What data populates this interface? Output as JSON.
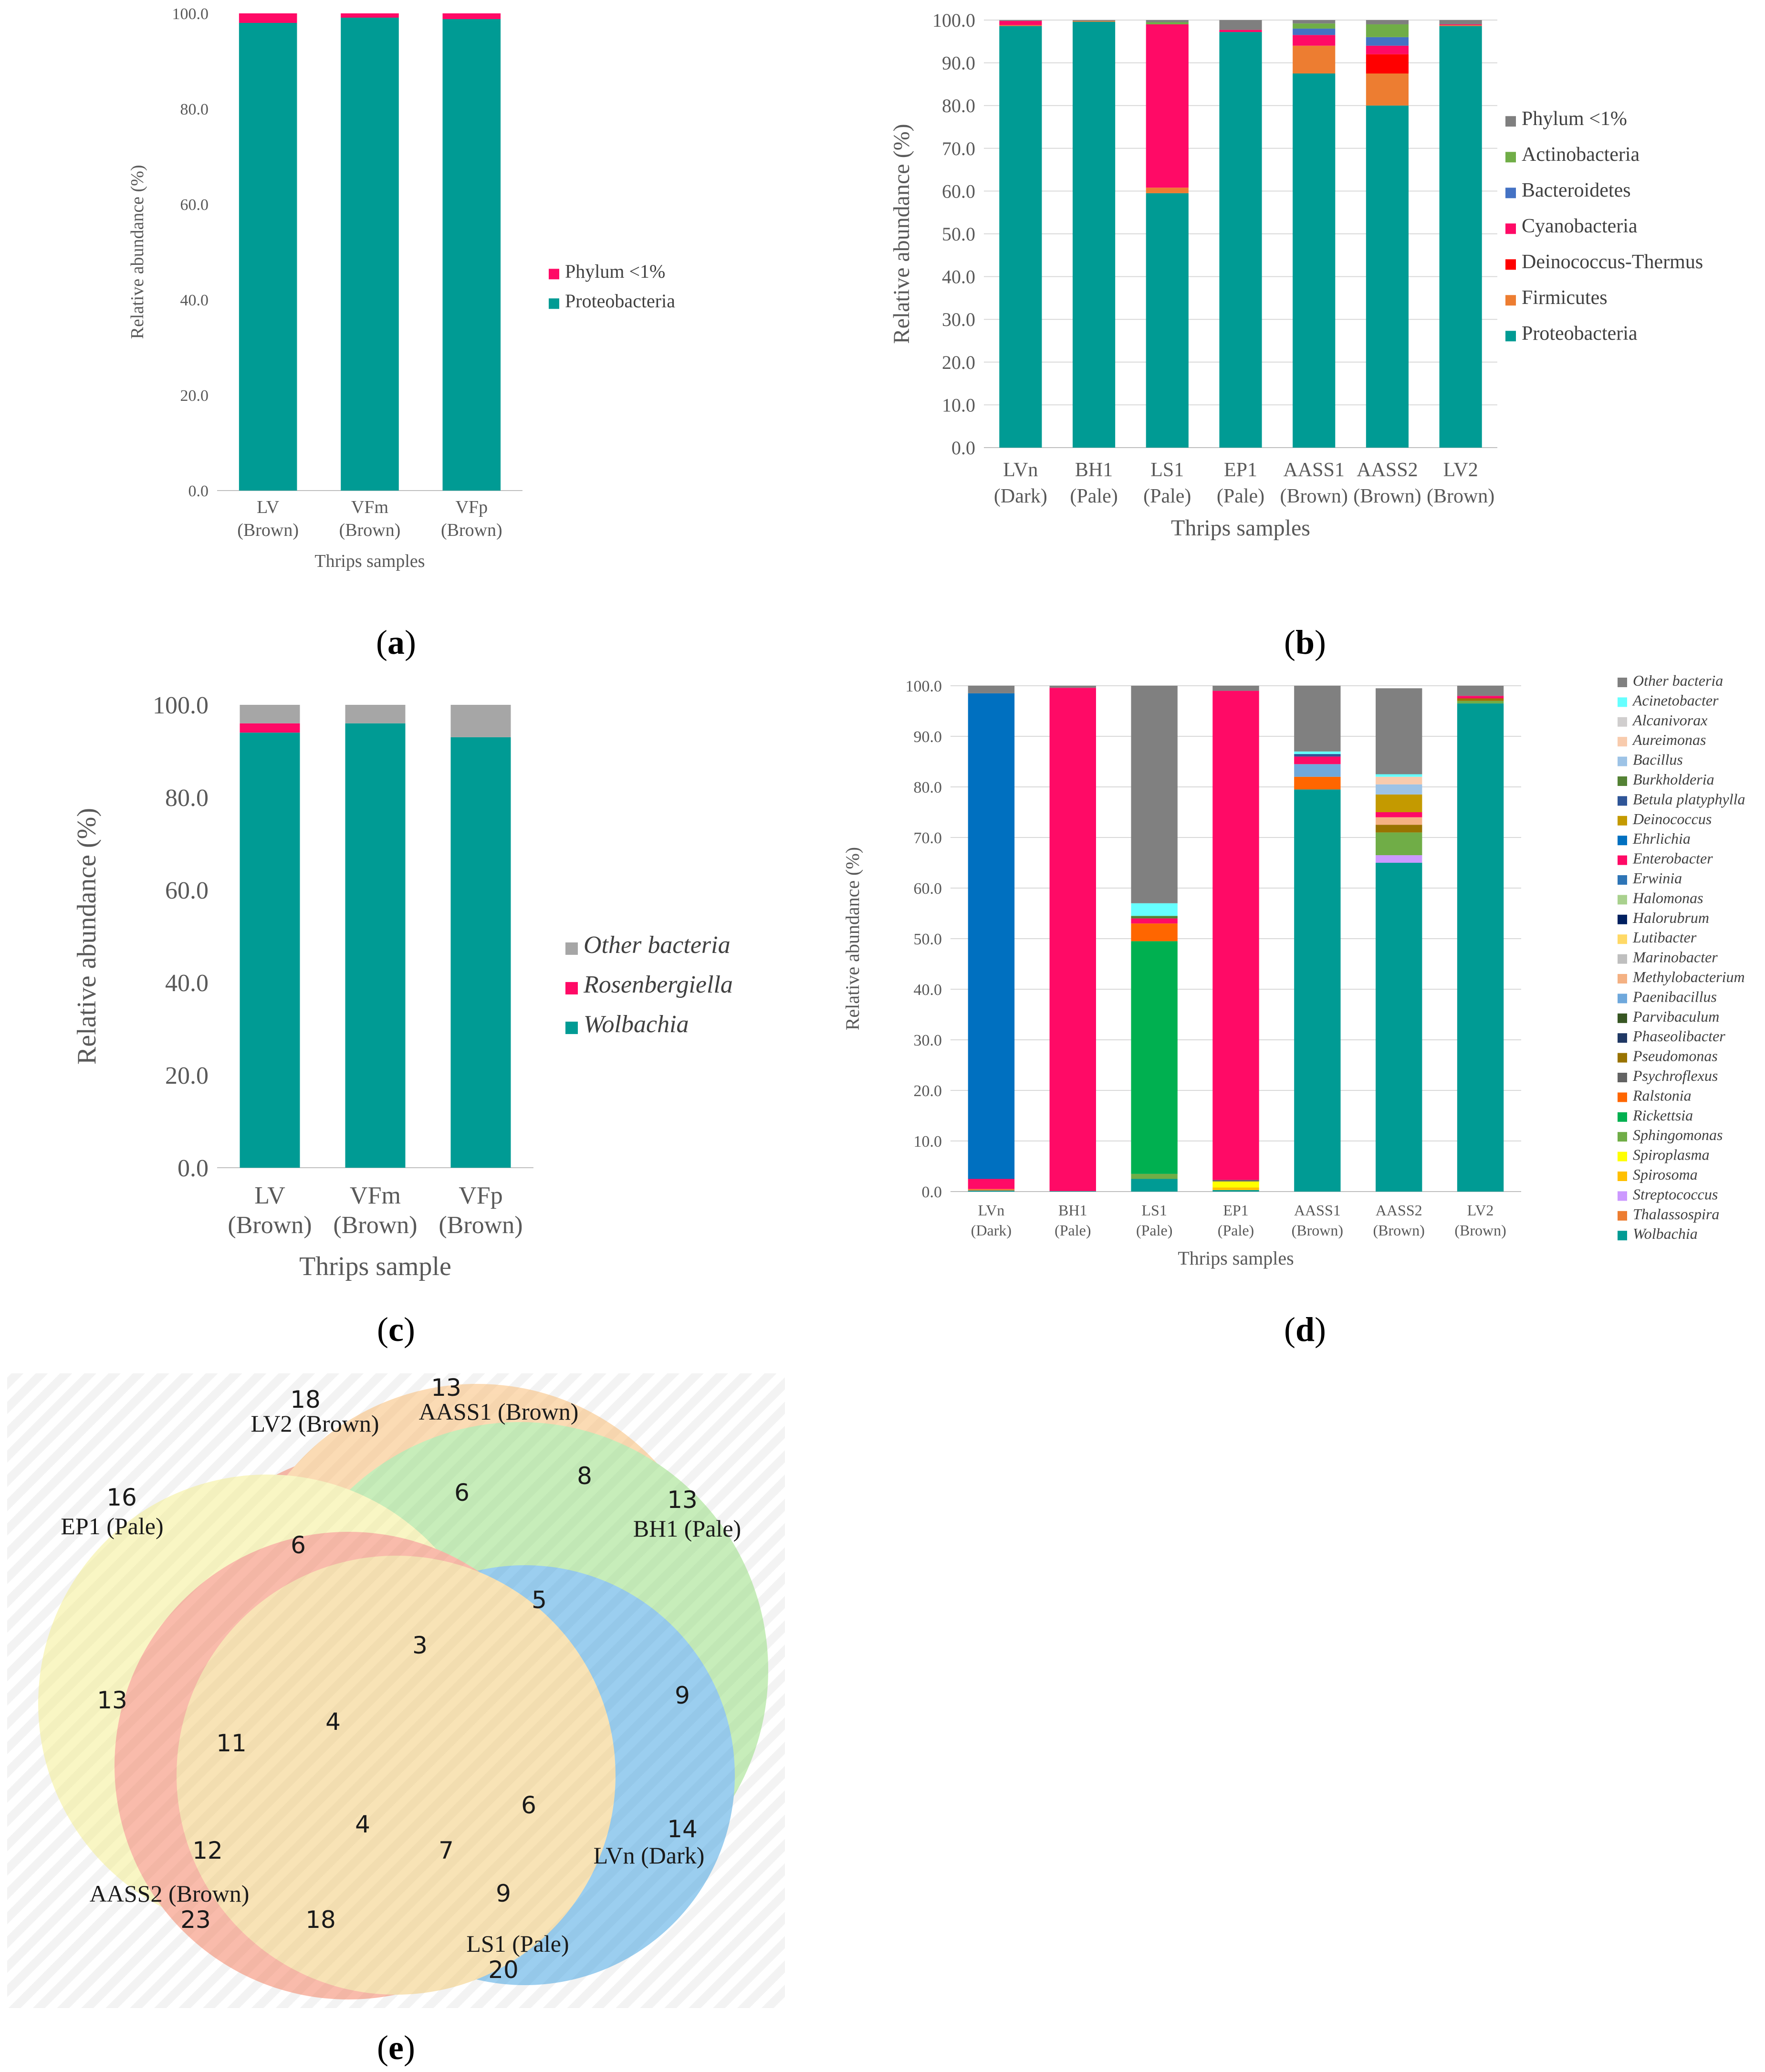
{
  "panels": {
    "a": {
      "label": "(a)",
      "letter": "a",
      "chart_data": {
        "type": "bar",
        "stacked": true,
        "title": "",
        "xlabel": "Thrips samples",
        "ylabel": "Relative abundance (%)",
        "ylim": [
          0,
          100
        ],
        "yticks": [
          "0.0",
          "20.0",
          "40.0",
          "60.0",
          "80.0",
          "100.0"
        ],
        "categories": [
          [
            "LV",
            "(Brown)"
          ],
          [
            "VFm",
            "(Brown)"
          ],
          [
            "VFp",
            "(Brown)"
          ]
        ],
        "legend_position": "right",
        "series": [
          {
            "name": "Proteobacteria",
            "color": "#009b94",
            "italic": false,
            "values": [
              98.0,
              99.1,
              98.8
            ]
          },
          {
            "name": "Phylum <1%",
            "color": "#ff0a66",
            "italic": false,
            "values": [
              2.0,
              0.9,
              1.2
            ]
          }
        ]
      }
    },
    "b": {
      "label": "(b)",
      "letter": "b",
      "chart_data": {
        "type": "bar",
        "stacked": true,
        "title": "",
        "xlabel": "Thrips samples",
        "ylabel": "Relative abundance (%)",
        "ylim": [
          0,
          100
        ],
        "yticks": [
          "0.0",
          "10.0",
          "20.0",
          "30.0",
          "40.0",
          "50.0",
          "60.0",
          "70.0",
          "80.0",
          "90.0",
          "100.0"
        ],
        "categories": [
          [
            "LVn",
            "(Dark)"
          ],
          [
            "BH1",
            "(Pale)"
          ],
          [
            "LS1",
            "(Pale)"
          ],
          [
            "EP1",
            "(Pale)"
          ],
          [
            "AASS1",
            "(Brown)"
          ],
          [
            "AASS2",
            "(Brown)"
          ],
          [
            "LV2",
            "(Brown)"
          ]
        ],
        "legend_position": "right",
        "series": [
          {
            "name": "Proteobacteria",
            "color": "#009b94",
            "italic": false,
            "values": [
              98.6,
              99.6,
              59.5,
              97.2,
              87.5,
              80.0,
              98.6
            ]
          },
          {
            "name": "Firmicutes",
            "color": "#ed7d31",
            "italic": false,
            "values": [
              0.2,
              0.2,
              1.3,
              0.0,
              6.5,
              7.5,
              0.2
            ]
          },
          {
            "name": "Deinococcus-Thermus",
            "color": "#ff0000",
            "italic": false,
            "values": [
              0.0,
              0.0,
              0.0,
              0.0,
              0.0,
              4.5,
              0.0
            ]
          },
          {
            "name": "Cyanobacteria",
            "color": "#ff0a66",
            "italic": false,
            "values": [
              1.0,
              0.0,
              38.2,
              0.5,
              2.5,
              2.0,
              0.2
            ]
          },
          {
            "name": "Bacteroidetes",
            "color": "#4472c4",
            "italic": false,
            "values": [
              0.0,
              0.0,
              0.0,
              0.0,
              1.5,
              2.0,
              0.0
            ]
          },
          {
            "name": "Actinobacteria",
            "color": "#70ad47",
            "italic": false,
            "values": [
              0.0,
              0.0,
              0.5,
              0.0,
              1.2,
              3.0,
              0.0
            ]
          },
          {
            "name": "Phylum <1%",
            "color": "#7f7f7f",
            "italic": false,
            "values": [
              0.2,
              0.2,
              0.5,
              2.3,
              0.8,
              1.0,
              1.0
            ]
          }
        ]
      }
    },
    "c": {
      "label": "(c)",
      "letter": "c",
      "chart_data": {
        "type": "bar",
        "stacked": true,
        "title": "",
        "xlabel": "Thrips sample",
        "ylabel": "Relative abundance (%)",
        "ylim": [
          0,
          100
        ],
        "yticks": [
          "0.0",
          "20.0",
          "40.0",
          "60.0",
          "80.0",
          "100.0"
        ],
        "categories": [
          [
            "LV",
            "(Brown)"
          ],
          [
            "VFm",
            "(Brown)"
          ],
          [
            "VFp",
            "(Brown)"
          ]
        ],
        "legend_position": "right",
        "series": [
          {
            "name": "Wolbachia",
            "color": "#009b94",
            "italic": true,
            "values": [
              94.0,
              96.0,
              93.0
            ]
          },
          {
            "name": "Rosenbergiella",
            "color": "#ff0a66",
            "italic": true,
            "values": [
              2.0,
              0.0,
              0.0
            ]
          },
          {
            "name": "Other bacteria",
            "color": "#a6a6a6",
            "italic": true,
            "values": [
              4.0,
              4.0,
              7.0
            ]
          }
        ]
      }
    },
    "d": {
      "label": "(d)",
      "letter": "d",
      "chart_data": {
        "type": "bar",
        "stacked": true,
        "title": "",
        "xlabel": "Thrips samples",
        "ylabel": "Relative abundance (%)",
        "ylim": [
          0,
          100
        ],
        "yticks": [
          "0.0",
          "10.0",
          "20.0",
          "30.0",
          "40.0",
          "50.0",
          "60.0",
          "70.0",
          "80.0",
          "90.0",
          "100.0"
        ],
        "categories": [
          [
            "LVn",
            "(Dark)"
          ],
          [
            "BH1",
            "(Pale)"
          ],
          [
            "LS1",
            "(Pale)"
          ],
          [
            "EP1",
            "(Pale)"
          ],
          [
            "AASS1",
            "(Brown)"
          ],
          [
            "AASS2",
            "(Brown)"
          ],
          [
            "LV2",
            "(Brown)"
          ]
        ],
        "legend_position": "right",
        "series": [
          {
            "name": "Wolbachia",
            "color": "#009b94",
            "italic": true,
            "values": [
              0.2,
              0.1,
              2.5,
              0.3,
              79.5,
              65.0,
              96.5
            ]
          },
          {
            "name": "Thalassospira",
            "color": "#ed7d31",
            "italic": true,
            "values": [
              0.3,
              0.0,
              0.0,
              0.0,
              0.0,
              0.0,
              0.0
            ]
          },
          {
            "name": "Streptococcus",
            "color": "#cc99ff",
            "italic": true,
            "values": [
              0.0,
              0.0,
              0.0,
              0.0,
              0.0,
              1.5,
              0.0
            ]
          },
          {
            "name": "Spirosoma",
            "color": "#ffc000",
            "italic": true,
            "values": [
              0.0,
              0.0,
              0.0,
              0.5,
              0.0,
              0.0,
              0.0
            ]
          },
          {
            "name": "Spiroplasma",
            "color": "#ffff00",
            "italic": true,
            "values": [
              0.0,
              0.0,
              0.0,
              1.2,
              0.0,
              0.0,
              0.0
            ]
          },
          {
            "name": "Sphingomonas",
            "color": "#70ad47",
            "italic": true,
            "values": [
              0.0,
              0.0,
              1.0,
              0.0,
              0.0,
              4.5,
              0.5
            ]
          },
          {
            "name": "Rickettsia",
            "color": "#00b050",
            "italic": true,
            "values": [
              0.0,
              0.0,
              46.0,
              0.0,
              0.0,
              0.0,
              0.0
            ]
          },
          {
            "name": "Ralstonia",
            "color": "#ff6600",
            "italic": true,
            "values": [
              0.0,
              0.0,
              3.5,
              0.0,
              2.5,
              0.0,
              0.0
            ]
          },
          {
            "name": "Psychroflexus",
            "color": "#636363",
            "italic": true,
            "values": [
              0.0,
              0.0,
              0.0,
              0.3,
              0.0,
              0.0,
              0.0
            ]
          },
          {
            "name": "Pseudomonas",
            "color": "#997300",
            "italic": true,
            "values": [
              0.0,
              0.0,
              0.0,
              0.0,
              0.0,
              1.5,
              0.5
            ]
          },
          {
            "name": "Phaseolibacter",
            "color": "#203864",
            "italic": true,
            "values": [
              0.0,
              0.0,
              0.0,
              0.0,
              0.0,
              0.0,
              0.0
            ]
          },
          {
            "name": "Parvibaculum",
            "color": "#375623",
            "italic": true,
            "values": [
              0.0,
              0.0,
              0.0,
              0.0,
              0.0,
              0.0,
              0.0
            ]
          },
          {
            "name": "Paenibacillus",
            "color": "#6fa8dc",
            "italic": true,
            "values": [
              0.0,
              0.0,
              0.0,
              0.0,
              2.5,
              0.0,
              0.0
            ]
          },
          {
            "name": "Methylobacterium",
            "color": "#f4b183",
            "italic": true,
            "values": [
              0.0,
              0.0,
              0.0,
              0.0,
              0.0,
              1.5,
              0.0
            ]
          },
          {
            "name": "Marinobacter",
            "color": "#bfbfbf",
            "italic": true,
            "values": [
              0.0,
              0.0,
              0.0,
              0.0,
              0.0,
              0.0,
              0.0
            ]
          },
          {
            "name": "Lutibacter",
            "color": "#ffd966",
            "italic": true,
            "values": [
              0.0,
              0.0,
              0.0,
              0.0,
              0.0,
              0.0,
              0.0
            ]
          },
          {
            "name": "Halorubrum",
            "color": "#002060",
            "italic": true,
            "values": [
              0.0,
              0.0,
              0.0,
              0.0,
              0.0,
              0.0,
              0.0
            ]
          },
          {
            "name": "Halomonas",
            "color": "#a9d18e",
            "italic": true,
            "values": [
              0.0,
              0.0,
              0.0,
              0.0,
              0.0,
              0.0,
              0.0
            ]
          },
          {
            "name": "Erwinia",
            "color": "#2e75b6",
            "italic": true,
            "values": [
              0.0,
              0.0,
              0.0,
              0.0,
              0.0,
              0.0,
              0.0
            ]
          },
          {
            "name": "Enterobacter",
            "color": "#ff0a66",
            "italic": true,
            "values": [
              2.0,
              99.5,
              1.0,
              96.7,
              1.5,
              1.0,
              0.5
            ]
          },
          {
            "name": "Ehrlichia",
            "color": "#0070c0",
            "italic": true,
            "values": [
              96.0,
              0.0,
              0.0,
              0.0,
              0.0,
              0.0,
              0.0
            ]
          },
          {
            "name": "Deinococcus",
            "color": "#c49a00",
            "italic": true,
            "values": [
              0.0,
              0.0,
              0.0,
              0.0,
              0.0,
              3.5,
              0.0
            ]
          },
          {
            "name": "Betula platyphylla",
            "color": "#2f5597",
            "italic": true,
            "values": [
              0.0,
              0.0,
              0.0,
              0.0,
              0.5,
              0.0,
              0.0
            ]
          },
          {
            "name": "Burkholderia",
            "color": "#548235",
            "italic": true,
            "values": [
              0.0,
              0.0,
              0.5,
              0.0,
              0.0,
              0.0,
              0.0
            ]
          },
          {
            "name": "Bacillus",
            "color": "#9dc3e6",
            "italic": true,
            "values": [
              0.0,
              0.0,
              0.0,
              0.0,
              0.0,
              2.0,
              0.0
            ]
          },
          {
            "name": "Aureimonas",
            "color": "#f8cbad",
            "italic": true,
            "values": [
              0.0,
              0.0,
              0.0,
              0.0,
              0.0,
              1.5,
              0.0
            ]
          },
          {
            "name": "Alcanivorax",
            "color": "#d0cece",
            "italic": true,
            "values": [
              0.0,
              0.0,
              0.0,
              0.0,
              0.0,
              0.0,
              0.0
            ]
          },
          {
            "name": "Acinetobacter",
            "color": "#66ffff",
            "italic": true,
            "values": [
              0.0,
              0.0,
              2.5,
              0.0,
              0.5,
              0.5,
              0.0
            ]
          },
          {
            "name": "Other bacteria",
            "color": "#808080",
            "italic": true,
            "values": [
              1.5,
              0.4,
              43.0,
              1.0,
              13.0,
              17.0,
              2.0
            ]
          }
        ]
      }
    },
    "e": {
      "label": "(e)",
      "letter": "e",
      "venn": {
        "sets": [
          {
            "name": "LV2 (Brown)",
            "color": "#f47a5a",
            "unique": "18"
          },
          {
            "name": "AASS1 (Brown)",
            "color": "#f9b86c",
            "unique": "13"
          },
          {
            "name": "BH1 (Pale)",
            "color": "#90dc78",
            "unique": "13"
          },
          {
            "name": "EP1 (Pale)",
            "color": "#f4ee8a",
            "unique": "16"
          },
          {
            "name": "LVn (Dark)",
            "color": "#3a9ee0",
            "unique": "14"
          },
          {
            "name": "AASS2 (Brown)",
            "color": "#f47a5a",
            "unique": "23"
          },
          {
            "name": "LS1 (Pale)",
            "color": "#f2c870",
            "unique": "20"
          }
        ],
        "intersections": [
          "6",
          "8",
          "6",
          "5",
          "3",
          "9",
          "13",
          "11",
          "4",
          "12",
          "4",
          "7",
          "6",
          "9",
          "18"
        ]
      }
    }
  }
}
